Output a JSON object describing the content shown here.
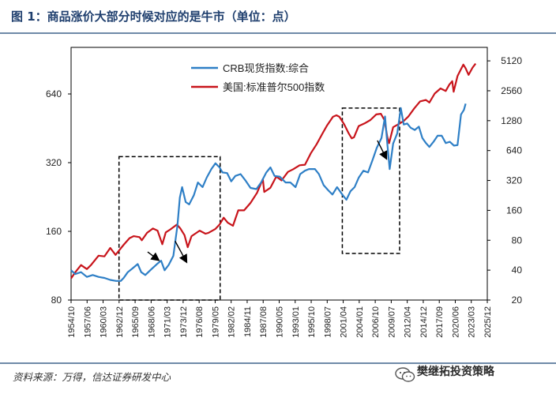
{
  "header": {
    "title": "图 1：商品涨价大部分时候对应的是牛市（单位：点）"
  },
  "footer": {
    "source": "资料来源：万得，信达证券研发中心",
    "watermark": "樊继拓投资策略"
  },
  "colors": {
    "crb": "#2e7fc6",
    "sp500": "#c8141b",
    "title": "#1f3f6e"
  },
  "chart_data": {
    "type": "line",
    "title": "",
    "legend": {
      "position": "top-center",
      "entries": [
        "CRB现货指数:综合",
        "美国:标准普尔500指数"
      ]
    },
    "x_ticks": [
      "1954/10",
      "1957/06",
      "1960/03",
      "1962/12",
      "1965/09",
      "1968/06",
      "1971/03",
      "1973/12",
      "1976/08",
      "1979/05",
      "1982/02",
      "1984/11",
      "1987/08",
      "1990/05",
      "1993/01",
      "1995/10",
      "1998/07",
      "2001/04",
      "2004/01",
      "2006/10",
      "2009/07",
      "2012/04",
      "2014/12",
      "2017/09",
      "2020/06",
      "2023/03",
      "2025/12"
    ],
    "x_range": [
      1954.8,
      2026.0
    ],
    "y_left": {
      "scale": "log2",
      "ticks": [
        80,
        160,
        320,
        640
      ],
      "range": [
        80,
        1024
      ],
      "series": "CRB现货指数:综合"
    },
    "y_right": {
      "scale": "log2",
      "ticks": [
        20,
        40,
        80,
        160,
        320,
        640,
        1280,
        2560,
        5120
      ],
      "range": [
        20,
        7000
      ],
      "series": "美国:标准普尔500指数"
    },
    "grid": false,
    "series": [
      {
        "name": "CRB现货指数:综合",
        "axis": "left",
        "x": [
          1954.8,
          1955.5,
          1956.5,
          1957.5,
          1958.5,
          1959.5,
          1960.5,
          1961.5,
          1962.5,
          1963.3,
          1963.8,
          1964.5,
          1965.3,
          1966.2,
          1966.8,
          1967.5,
          1968.5,
          1969.5,
          1970.2,
          1970.8,
          1971.5,
          1972.3,
          1973.0,
          1973.4,
          1973.8,
          1974.4,
          1975.0,
          1975.8,
          1976.5,
          1977.3,
          1978.0,
          1978.8,
          1979.5,
          1980.2,
          1980.7,
          1981.5,
          1982.2,
          1982.9,
          1983.8,
          1984.6,
          1985.5,
          1986.5,
          1987.3,
          1988.2,
          1988.9,
          1989.6,
          1990.5,
          1991.5,
          1992.3,
          1993.2,
          1994.0,
          1994.8,
          1995.5,
          1996.5,
          1997.2,
          1998.0,
          1998.8,
          1999.5,
          2000.3,
          2001.2,
          2001.9,
          2002.6,
          2003.3,
          2004.0,
          2004.8,
          2005.6,
          2006.4,
          2007.1,
          2007.9,
          2008.5,
          2008.9,
          2009.3,
          2009.9,
          2010.6,
          2011.2,
          2011.7,
          2012.3,
          2012.9,
          2013.6,
          2014.3,
          2014.9,
          2015.5,
          2016.1,
          2016.8,
          2017.5,
          2018.2,
          2018.9,
          2019.6,
          2020.3,
          2020.9,
          2021.5,
          2022.0,
          2022.3
        ],
        "values": [
          108,
          104,
          106,
          101,
          103,
          101,
          100,
          98,
          97,
          97,
          100,
          106,
          110,
          115,
          106,
          103,
          109,
          115,
          119,
          108,
          114,
          125,
          170,
          225,
          250,
          215,
          210,
          230,
          262,
          250,
          275,
          300,
          318,
          305,
          290,
          288,
          265,
          280,
          285,
          268,
          248,
          245,
          262,
          290,
          305,
          280,
          278,
          262,
          262,
          250,
          285,
          295,
          300,
          300,
          285,
          255,
          242,
          232,
          250,
          232,
          220,
          240,
          250,
          275,
          295,
          290,
          330,
          372,
          410,
          510,
          388,
          300,
          388,
          430,
          555,
          470,
          475,
          455,
          445,
          460,
          410,
          390,
          375,
          395,
          420,
          420,
          390,
          395,
          380,
          382,
          520,
          545,
          580
        ]
      },
      {
        "name": "美国:标准普尔500指数",
        "axis": "right",
        "x": [
          1954.8,
          1955.5,
          1956.5,
          1957.5,
          1958.2,
          1959.5,
          1960.5,
          1961.5,
          1962.4,
          1962.9,
          1963.8,
          1964.8,
          1965.5,
          1966.5,
          1966.9,
          1967.8,
          1968.8,
          1969.6,
          1970.4,
          1971.0,
          1971.8,
          1972.9,
          1973.5,
          1974.2,
          1974.75,
          1975.4,
          1976.8,
          1977.8,
          1978.3,
          1979.5,
          1980.2,
          1980.9,
          1981.6,
          1982.5,
          1983.4,
          1984.4,
          1985.5,
          1986.6,
          1987.6,
          1987.85,
          1988.9,
          1989.9,
          1990.8,
          1991.9,
          1992.8,
          1993.9,
          1994.8,
          1995.8,
          1996.8,
          1997.8,
          1998.6,
          1999.6,
          2000.2,
          2000.7,
          2001.5,
          2002.3,
          2002.8,
          2003.2,
          2004.0,
          2005.0,
          2006.0,
          2007.0,
          2007.8,
          2008.4,
          2008.9,
          2009.2,
          2009.9,
          2010.8,
          2011.7,
          2012.5,
          2013.5,
          2014.5,
          2015.5,
          2016.1,
          2017.0,
          2018.0,
          2018.9,
          2019.5,
          2020.0,
          2020.25,
          2020.9,
          2021.9,
          2022.3,
          2022.8,
          2023.5,
          2024.0
        ],
        "values": [
          33,
          38,
          45,
          41,
          45,
          56,
          55,
          67,
          57,
          62,
          72,
          84,
          88,
          86,
          80,
          95,
          105,
          100,
          73,
          96,
          103,
          115,
          105,
          90,
          68,
          88,
          100,
          93,
          95,
          104,
          115,
          135,
          120,
          112,
          160,
          160,
          190,
          240,
          330,
          245,
          270,
          350,
          320,
          390,
          415,
          455,
          460,
          600,
          740,
          950,
          1150,
          1400,
          1450,
          1400,
          1180,
          950,
          850,
          870,
          1130,
          1200,
          1300,
          1480,
          1500,
          1300,
          880,
          760,
          1100,
          1180,
          1270,
          1410,
          1700,
          2000,
          2070,
          1950,
          2400,
          2700,
          2550,
          2950,
          3200,
          2500,
          3600,
          4700,
          4300,
          3700,
          4400,
          4800
        ]
      }
    ],
    "annotations": {
      "dashed_boxes": [
        {
          "x_from": 1963.0,
          "x_to": 1980.3,
          "y_from_left": 80,
          "y_to_left": 340
        },
        {
          "x_from": 2001.2,
          "x_to": 2011.0,
          "y_from_left": 128,
          "y_to_left": 555
        }
      ],
      "arrows": [
        {
          "from": [
            1967.9,
            130
          ],
          "to": [
            1969.7,
            120
          ]
        },
        {
          "from": [
            1972.6,
            145
          ],
          "to": [
            1974.5,
            118
          ]
        },
        {
          "from": [
            2007.2,
            400
          ],
          "to": [
            2008.7,
            335
          ]
        }
      ]
    }
  }
}
